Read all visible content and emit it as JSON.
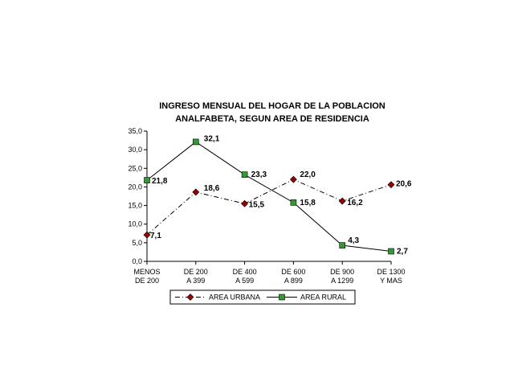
{
  "chart_data": {
    "type": "line",
    "title_lines": [
      "INGRESO MENSUAL DEL HOGAR DE LA POBLACION",
      "ANALFABETA, SEGUN AREA DE RESIDENCIA"
    ],
    "categories": [
      [
        "MENOS",
        "DE 200"
      ],
      [
        "DE 200",
        "A 399"
      ],
      [
        "DE 400",
        "A 599"
      ],
      [
        "DE 600",
        "A 899"
      ],
      [
        "DE 900",
        "A 1299"
      ],
      [
        "DE 1300",
        "Y MAS"
      ]
    ],
    "ylim": [
      0,
      35
    ],
    "yticks": [
      "0,0",
      "5,0",
      "10,0",
      "15,0",
      "20,0",
      "25,0",
      "30,0",
      "35,0"
    ],
    "ytick_values": [
      0,
      5,
      10,
      15,
      20,
      25,
      30,
      35
    ],
    "series": [
      {
        "name": "AREA URBANA",
        "values": [
          7.1,
          18.6,
          15.5,
          22.0,
          16.2,
          20.6
        ],
        "labels": [
          "7,1",
          "18,6",
          "15,5",
          "22,0",
          "16,2",
          "20,6"
        ],
        "color": "#990000",
        "marker": "diamond",
        "line_style": "dash-dot"
      },
      {
        "name": "AREA RURAL",
        "values": [
          21.8,
          32.1,
          23.3,
          15.8,
          4.3,
          2.7
        ],
        "labels": [
          "21,8",
          "32,1",
          "23,3",
          "15,8",
          "4,3",
          "2,7"
        ],
        "color": "#339933",
        "marker": "square",
        "line_style": "solid"
      }
    ],
    "legend_position": "bottom",
    "grid": false
  }
}
